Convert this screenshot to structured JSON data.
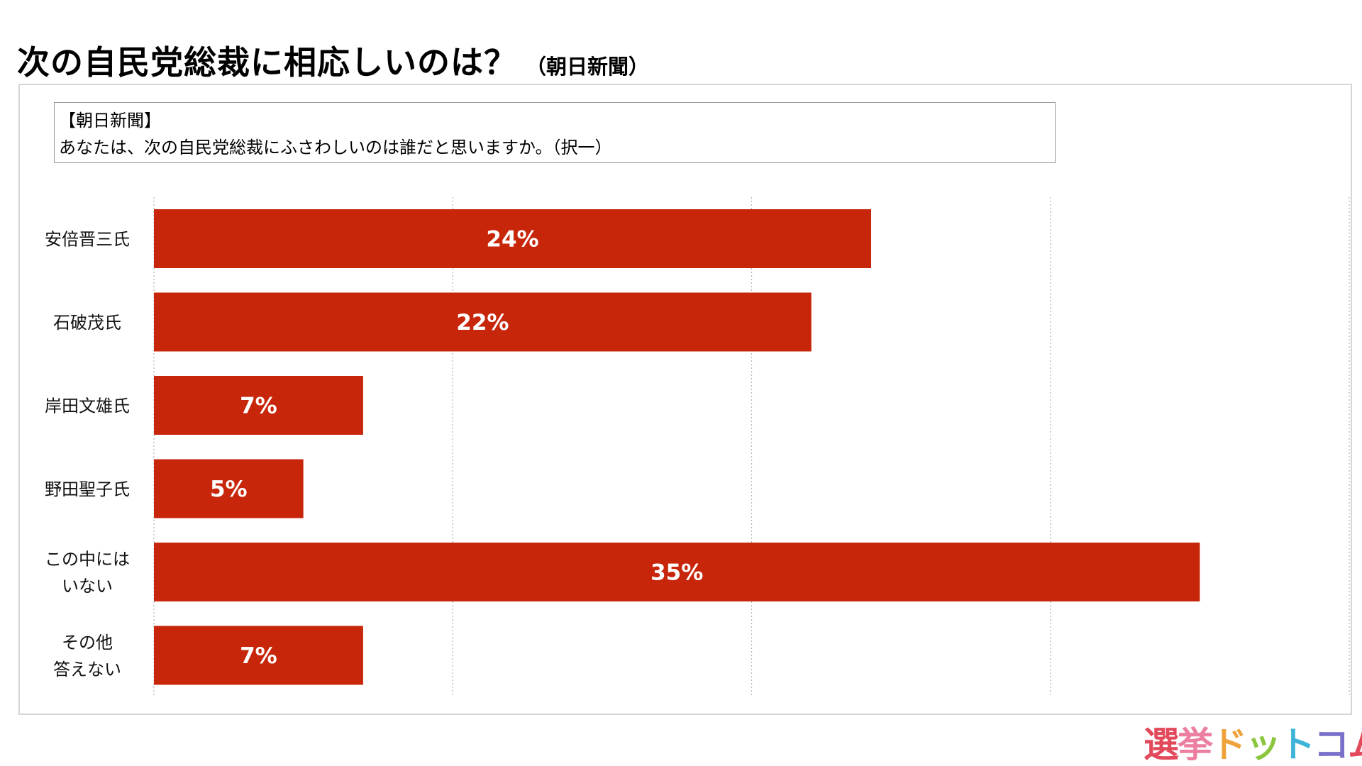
{
  "title": {
    "main": "次の自民党総裁に相応しいのは？",
    "sub": "（朝日新聞）"
  },
  "question": {
    "source": "【朝日新聞】",
    "text": "あなたは、次の自民党総裁にふさわしいのは誰だと思いますか。（択一）"
  },
  "chart_data": {
    "type": "bar",
    "orientation": "horizontal",
    "categories": [
      [
        "安倍晋三氏"
      ],
      [
        "石破茂氏"
      ],
      [
        "岸田文雄氏"
      ],
      [
        "野田聖子氏"
      ],
      [
        "この中には",
        "いない"
      ],
      [
        "その他",
        "答えない"
      ]
    ],
    "values": [
      24,
      22,
      7,
      5,
      35,
      7
    ],
    "value_labels": [
      "24%",
      "22%",
      "7%",
      "5%",
      "35%",
      "7%"
    ],
    "xlim": [
      0,
      40
    ],
    "grid": true,
    "bar_color": "#C8260A"
  },
  "logo": {
    "chars": [
      "選",
      "挙",
      "ド",
      "ッ",
      "ト",
      "コ",
      "ム"
    ]
  }
}
